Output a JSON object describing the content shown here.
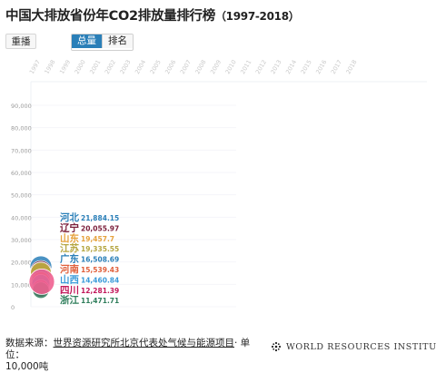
{
  "title": "中国大排放省份年CO2排放量排行榜",
  "title_years": "（1997-2018）",
  "controls": {
    "replay_label": "重播",
    "tabs": [
      {
        "label": "总量",
        "active": true
      },
      {
        "label": "排名",
        "active": false
      }
    ]
  },
  "source": {
    "prefix": "数据来源：",
    "org": "世界资源研究所北京代表处气候与能源项目",
    "unit": "· 单位：",
    "unit_value": "10,000吨"
  },
  "credit": "WORLD RESOURCES INSTITUTE",
  "chart_data": {
    "type": "scatter",
    "x_ticks": [
      "1997",
      "1998",
      "1999",
      "2000",
      "2001",
      "2002",
      "2003",
      "2004",
      "2005",
      "2006",
      "2007",
      "2008",
      "2009",
      "2010",
      "2011",
      "2012",
      "2013",
      "2014",
      "2015",
      "2016",
      "2017",
      "2018"
    ],
    "y_ticks": [
      "0",
      "10,000",
      "20,000",
      "30,000",
      "40,000",
      "50,000",
      "60,000",
      "70,000",
      "80,000",
      "90,000"
    ],
    "ylim": [
      0,
      90000
    ],
    "current_year": "1997",
    "series": [
      {
        "name": "河北",
        "value": 21884.15,
        "label": "21,884.15",
        "color": "#2a7fb8"
      },
      {
        "name": "辽宁",
        "value": 20055.97,
        "label": "20,055.97",
        "color": "#7a1e3a"
      },
      {
        "name": "山东",
        "value": 19457.7,
        "label": "19,457.7",
        "color": "#e6a23c"
      },
      {
        "name": "江苏",
        "value": 19335.55,
        "label": "19,335.55",
        "color": "#b5a642"
      },
      {
        "name": "广东",
        "value": 16508.69,
        "label": "16,508.69",
        "color": "#2a7fb8"
      },
      {
        "name": "河南",
        "value": 15539.43,
        "label": "15,539.43",
        "color": "#e0603c"
      },
      {
        "name": "山西",
        "value": 14460.84,
        "label": "14,460.84",
        "color": "#3a9ad9"
      },
      {
        "name": "四川",
        "value": 12281.39,
        "label": "12,281.39",
        "color": "#c2185b"
      },
      {
        "name": "浙江",
        "value": 11471.71,
        "label": "11,471.71",
        "color": "#2e7d5b"
      }
    ]
  }
}
